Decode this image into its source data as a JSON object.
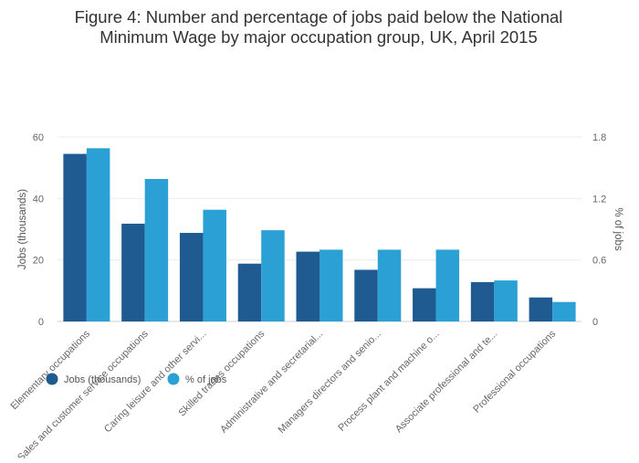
{
  "chart_data": {
    "type": "bar",
    "title": "Figure 4: Number and percentage of jobs paid below the National Minimum Wage by major occupation group, UK, April 2015",
    "title_lines": [
      "Figure 4: Number and percentage of jobs paid below the National",
      "Minimum Wage by major occupation group, UK, April 2015"
    ],
    "ylabel": "Jobs (thousands)",
    "y2label": "% of jobs",
    "ylim": [
      0,
      60
    ],
    "y2lim": [
      0,
      1.8
    ],
    "yticks": [
      "0",
      "20",
      "40",
      "60"
    ],
    "y2ticks": [
      "0",
      "0.6",
      "1.2",
      "1.8"
    ],
    "grid": true,
    "legend_position": "bottom-left",
    "categories": [
      "Elementary occupations",
      "Sales and customer service occupations",
      "Caring leisure and other servi...",
      "Skilled trades occupations",
      "Administrative and secretarial...",
      "Managers directors and senio...",
      "Process plant and machine o...",
      "Associate professional and te...",
      "Professional occupations"
    ],
    "series": [
      {
        "name": "Jobs (thousands)",
        "axis": "left",
        "color": "#1f5a91",
        "values": [
          54.5,
          31.8,
          28.8,
          18.8,
          22.7,
          16.8,
          10.8,
          12.8,
          7.8
        ]
      },
      {
        "name": "% of jobs",
        "axis": "right",
        "color": "#2aa0d4",
        "values": [
          1.69,
          1.39,
          1.09,
          0.89,
          0.7,
          0.7,
          0.7,
          0.4,
          0.19
        ]
      }
    ]
  }
}
